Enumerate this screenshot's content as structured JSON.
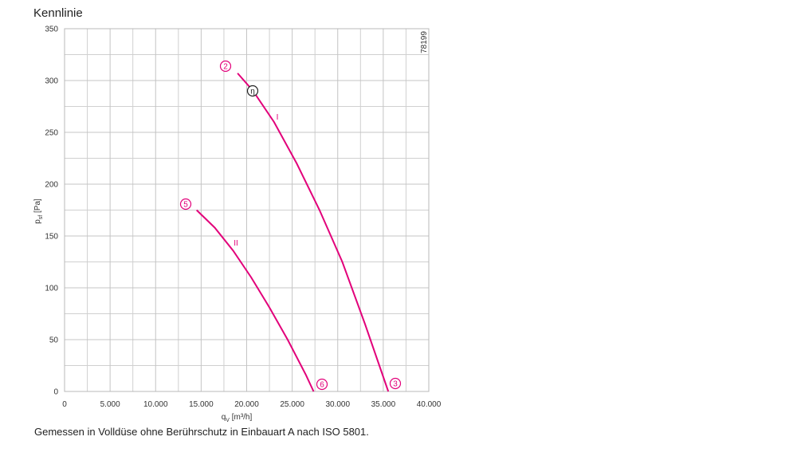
{
  "header": "Kennlinie",
  "chart_data": {
    "type": "line",
    "x_label": {
      "symbol": "q",
      "subscript": "V",
      "unit": "[m³/h]"
    },
    "y_label": {
      "symbol": "p",
      "subscript": "sf",
      "unit": "[Pa]"
    },
    "xlim": [
      0,
      40000
    ],
    "ylim": [
      0,
      350
    ],
    "xticks": [
      0,
      {
        "value": 5000,
        "label": "5.000"
      },
      {
        "value": 10000,
        "label": "10.000"
      },
      {
        "value": 15000,
        "label": "15.000"
      },
      {
        "value": 20000,
        "label": "20.000"
      },
      {
        "value": 25000,
        "label": "25.000"
      },
      {
        "value": 30000,
        "label": "30.000"
      },
      {
        "value": 35000,
        "label": "35.000"
      },
      {
        "value": 40000,
        "label": "40.000"
      }
    ],
    "yticks": [
      0,
      50,
      100,
      150,
      200,
      250,
      300,
      350
    ],
    "x_minor_grid": [
      2500,
      7500,
      12500,
      17500,
      22500,
      27500,
      32500,
      37500
    ],
    "y_minor_grid": [
      25,
      75,
      125,
      175,
      225,
      275,
      325
    ],
    "grid": true,
    "series": [
      {
        "name": "I",
        "color": "#e2007a",
        "x": [
          19000,
          20700,
          23000,
          25500,
          28000,
          30500,
          33000,
          35550
        ],
        "values": [
          307,
          290,
          260,
          220,
          175,
          125,
          65,
          0
        ]
      },
      {
        "name": "II",
        "color": "#e2007a",
        "x": [
          14500,
          16500,
          18500,
          20500,
          22500,
          24500,
          26500,
          27350
        ],
        "values": [
          175,
          158,
          136,
          110,
          81,
          50,
          16,
          0
        ]
      }
    ],
    "point_labels": [
      "2",
      "η",
      "3",
      "5",
      "6"
    ],
    "id_label": "78199"
  },
  "footnote": "Gemessen in Volldüse ohne Berührschutz in Einbauart A nach ISO 5801."
}
